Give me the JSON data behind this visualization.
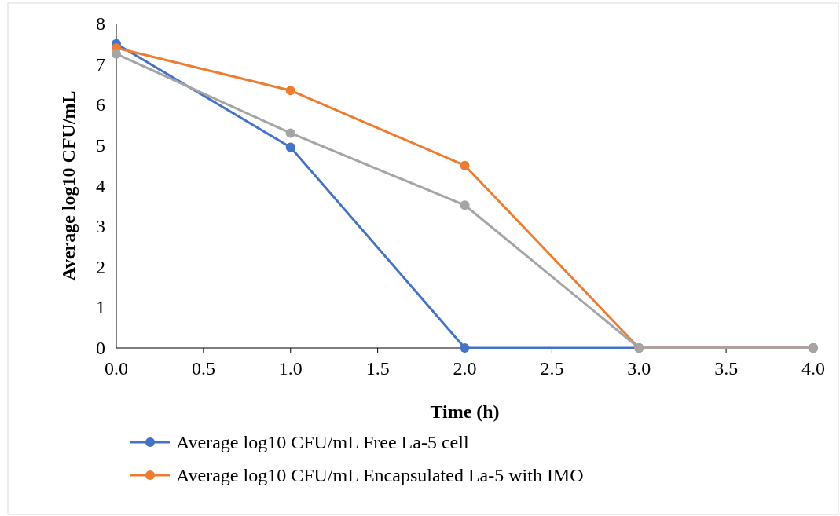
{
  "chart_data": {
    "type": "line",
    "xlabel": "Time (h)",
    "ylabel": "Average log10 CFU/mL",
    "x": [
      0,
      1,
      2,
      3,
      4
    ],
    "series": [
      {
        "name": "Average log10 CFU/mL Free La-5 cell",
        "color": "#4472c4",
        "values": [
          7.5,
          4.95,
          0,
          0,
          0
        ]
      },
      {
        "name": "Average log10 CFU/mL Encapsulated La-5 with IMO",
        "color": "#ed7d31",
        "values": [
          7.4,
          6.35,
          4.5,
          0,
          0
        ]
      },
      {
        "color": "#a5a5a5",
        "values": [
          7.25,
          5.3,
          3.52,
          0,
          0
        ]
      }
    ],
    "xlim": [
      0,
      4
    ],
    "xticks": [
      {
        "value": 0,
        "label": "0.0"
      },
      {
        "value": 0.5,
        "label": "0.5"
      },
      {
        "value": 1,
        "label": "1.0"
      },
      {
        "value": 1.5,
        "label": "1.5"
      },
      {
        "value": 2,
        "label": "2.0"
      },
      {
        "value": 2.5,
        "label": "2.5"
      },
      {
        "value": 3,
        "label": "3.0"
      },
      {
        "value": 3.5,
        "label": "3.5"
      },
      {
        "value": 4,
        "label": "4.0"
      }
    ],
    "ylim": [
      0,
      8
    ],
    "yticks": [
      0,
      1,
      2,
      3,
      4,
      5,
      6,
      7,
      8
    ],
    "grid": false,
    "legend": "bottom",
    "marker": "circle",
    "line_style": "solid"
  }
}
